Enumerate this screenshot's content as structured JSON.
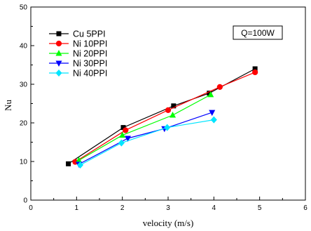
{
  "chart_data": {
    "type": "line",
    "xlabel": "velocity (m/s)",
    "ylabel": "Nu",
    "xlim": [
      0,
      6
    ],
    "ylim": [
      0,
      50
    ],
    "xticks": [
      "0",
      "1",
      "2",
      "3",
      "4",
      "5",
      "6"
    ],
    "yticks": [
      "0",
      "10",
      "20",
      "30",
      "40",
      "50"
    ],
    "annotation": "Q=100W",
    "legend_position": "top-left",
    "series": [
      {
        "name": "Cu 5PPI",
        "color": "#000000",
        "marker": "square",
        "x": [
          0.82,
          2.02,
          3.12,
          3.9,
          4.9
        ],
        "y": [
          9.4,
          18.8,
          24.4,
          27.7,
          34.0
        ]
      },
      {
        "name": "Ni 10PPI",
        "color": "#ff0000",
        "marker": "circle",
        "x": [
          0.97,
          2.07,
          3.0,
          4.13,
          4.9
        ],
        "y": [
          9.9,
          18.1,
          23.3,
          29.3,
          33.1
        ]
      },
      {
        "name": "Ni 20PPI",
        "color": "#00ff00",
        "marker": "triangle-up",
        "x": [
          1.05,
          2.0,
          3.1,
          3.93
        ],
        "y": [
          10.3,
          16.8,
          22.0,
          27.3
        ]
      },
      {
        "name": "Ni 30PPI",
        "color": "#0000ff",
        "marker": "triangle-down",
        "x": [
          1.05,
          2.12,
          2.92,
          3.96
        ],
        "y": [
          9.3,
          16.0,
          18.5,
          22.7
        ]
      },
      {
        "name": "Ni 40PPI",
        "color": "#00e5ff",
        "marker": "diamond",
        "x": [
          1.08,
          1.98,
          2.98,
          4.0
        ],
        "y": [
          9.1,
          14.8,
          18.8,
          20.8
        ]
      }
    ]
  }
}
